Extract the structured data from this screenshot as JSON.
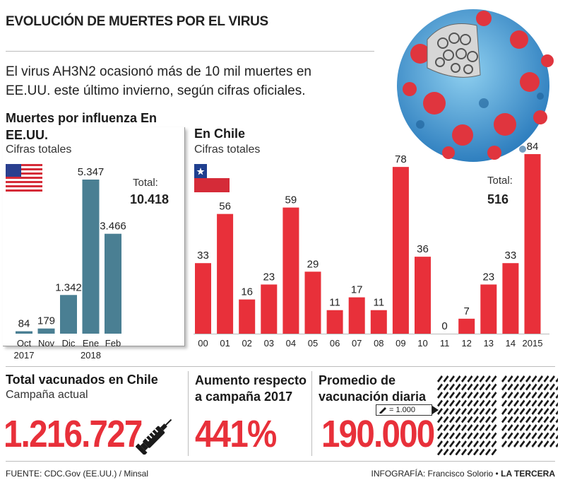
{
  "header": {
    "title": "EVOLUCIÓN DE MUERTES POR EL VIRUS",
    "intro": "El virus AH3N2 ocasionó más de 10 mil muertes en EE.UU. este último invierno, según cifras oficiales."
  },
  "us_panel": {
    "title": "Muertes por influenza En EE.UU.",
    "subtitle": "Cifras totales",
    "total_label": "Total:",
    "total_value": "10.418"
  },
  "chile_panel": {
    "title": "En Chile",
    "subtitle": "Cifras totales",
    "total_label": "Total:",
    "total_value": "516"
  },
  "colors": {
    "us_bar": "#4a7f93",
    "chile_bar": "#e8303a",
    "accent_red": "#e8303a"
  },
  "chart_data": [
    {
      "type": "bar",
      "title": "Muertes por influenza En EE.UU.",
      "subtitle": "Cifras totales",
      "categories": [
        "Oct 2017",
        "Nov",
        "Dic",
        "Ene 2018",
        "Feb"
      ],
      "values": [
        84,
        179,
        1342,
        5347,
        3466
      ],
      "value_labels": [
        "84",
        "179",
        "1.342",
        "5.347",
        "3.466"
      ],
      "ylim": [
        0,
        5347
      ]
    },
    {
      "type": "bar",
      "title": "En Chile",
      "subtitle": "Cifras totales",
      "categories": [
        "00",
        "01",
        "02",
        "03",
        "04",
        "05",
        "06",
        "07",
        "08",
        "09",
        "10",
        "11",
        "12",
        "13",
        "14",
        "2015"
      ],
      "values": [
        33,
        56,
        16,
        23,
        59,
        29,
        11,
        17,
        11,
        78,
        36,
        0,
        7,
        23,
        33,
        84
      ],
      "value_labels": [
        "33",
        "56",
        "16",
        "23",
        "59",
        "29",
        "11",
        "17",
        "11",
        "78",
        "36",
        "0",
        "7",
        "23",
        "33",
        "84"
      ],
      "ylim": [
        0,
        84
      ]
    }
  ],
  "stats": {
    "vaccinated": {
      "title": "Total vacunados en Chile",
      "subtitle": "Campaña actual",
      "value": "1.216.727",
      "icon": "syringe-icon"
    },
    "increase": {
      "title": "Aumento respecto a campaña 2017",
      "value": "441%"
    },
    "daily_avg": {
      "title": "Promedio de vacunación diaria",
      "value": "190.000",
      "legend": "= 1.000",
      "pictogram_count": 190
    }
  },
  "footer": {
    "source": "FUENTE: CDC.Gov (EE.UU.) / Minsal",
    "credit_label": "INFOGRAFÍA: Francisco Solorio •",
    "credit_brand": "LA TERCERA"
  }
}
